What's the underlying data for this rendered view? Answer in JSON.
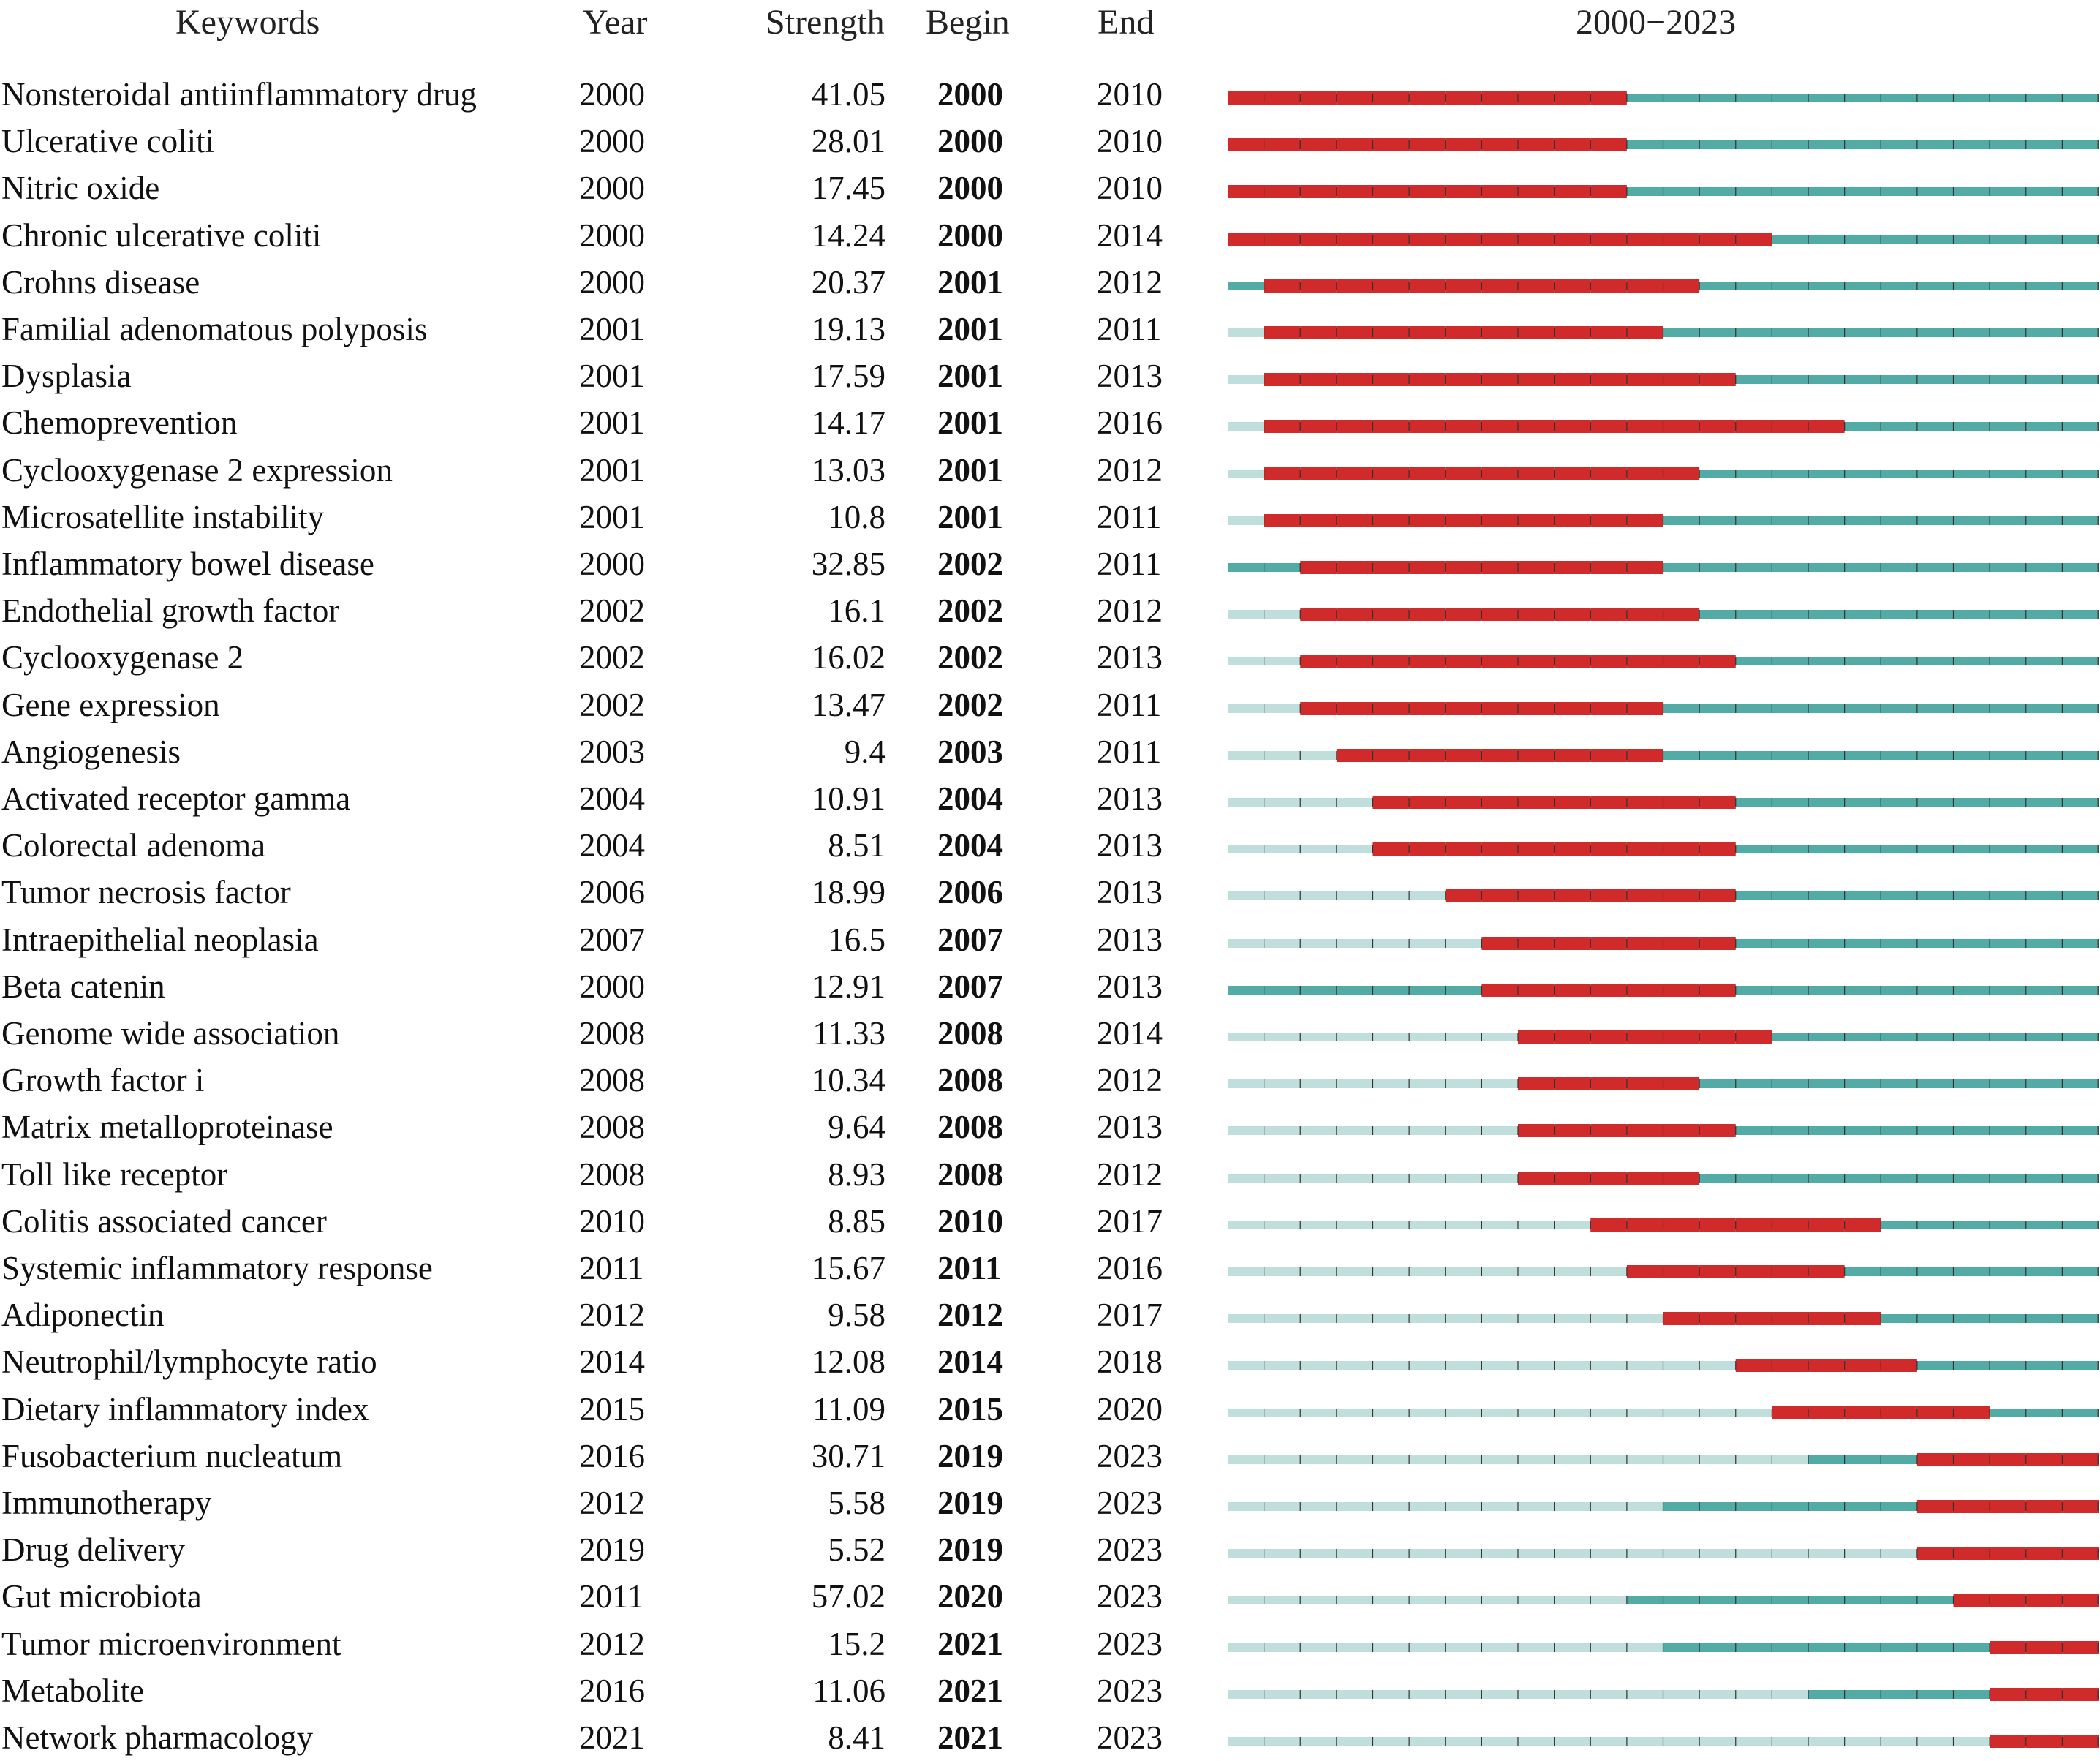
{
  "headers": {
    "keywords": "Keywords",
    "year": "Year",
    "strength": "Strength",
    "begin": "Begin",
    "end": "End",
    "range": "2000−2023"
  },
  "colors": {
    "burst": "#d02a2a",
    "active": "#52aba4",
    "inactive": "#c0dedb",
    "tick": "#333333"
  },
  "chart_data": {
    "type": "table",
    "title": "",
    "timeline_start": 2000,
    "timeline_end": 2023,
    "columns": [
      "Keywords",
      "Year",
      "Strength",
      "Begin",
      "End",
      "2000−2023"
    ],
    "rows": [
      {
        "keyword": "Nonsteroidal antiinflammatory drug",
        "year": "2000",
        "strength": "41.05",
        "begin": "2000",
        "end": "2010"
      },
      {
        "keyword": "Ulcerative coliti",
        "year": "2000",
        "strength": "28.01",
        "begin": "2000",
        "end": "2010"
      },
      {
        "keyword": "Nitric oxide",
        "year": "2000",
        "strength": "17.45",
        "begin": "2000",
        "end": "2010"
      },
      {
        "keyword": "Chronic ulcerative coliti",
        "year": "2000",
        "strength": "14.24",
        "begin": "2000",
        "end": "2014"
      },
      {
        "keyword": "Crohns disease",
        "year": "2000",
        "strength": "20.37",
        "begin": "2001",
        "end": "2012"
      },
      {
        "keyword": "Familial adenomatous polyposis",
        "year": "2001",
        "strength": "19.13",
        "begin": "2001",
        "end": "2011"
      },
      {
        "keyword": "Dysplasia",
        "year": "2001",
        "strength": "17.59",
        "begin": "2001",
        "end": "2013"
      },
      {
        "keyword": "Chemoprevention",
        "year": "2001",
        "strength": "14.17",
        "begin": "2001",
        "end": "2016"
      },
      {
        "keyword": "Cyclooxygenase 2 expression",
        "year": "2001",
        "strength": "13.03",
        "begin": "2001",
        "end": "2012"
      },
      {
        "keyword": "Microsatellite instability",
        "year": "2001",
        "strength": "10.8",
        "begin": "2001",
        "end": "2011"
      },
      {
        "keyword": "Inflammatory bowel disease",
        "year": "2000",
        "strength": "32.85",
        "begin": "2002",
        "end": "2011"
      },
      {
        "keyword": "Endothelial growth factor",
        "year": "2002",
        "strength": "16.1",
        "begin": "2002",
        "end": "2012"
      },
      {
        "keyword": "Cyclooxygenase 2",
        "year": "2002",
        "strength": "16.02",
        "begin": "2002",
        "end": "2013"
      },
      {
        "keyword": "Gene expression",
        "year": "2002",
        "strength": "13.47",
        "begin": "2002",
        "end": "2011"
      },
      {
        "keyword": "Angiogenesis",
        "year": "2003",
        "strength": "9.4",
        "begin": "2003",
        "end": "2011"
      },
      {
        "keyword": "Activated receptor gamma",
        "year": "2004",
        "strength": "10.91",
        "begin": "2004",
        "end": "2013"
      },
      {
        "keyword": "Colorectal adenoma",
        "year": "2004",
        "strength": "8.51",
        "begin": "2004",
        "end": "2013"
      },
      {
        "keyword": "Tumor necrosis factor",
        "year": "2006",
        "strength": "18.99",
        "begin": "2006",
        "end": "2013"
      },
      {
        "keyword": "Intraepithelial neoplasia",
        "year": "2007",
        "strength": "16.5",
        "begin": "2007",
        "end": "2013"
      },
      {
        "keyword": "Beta catenin",
        "year": "2000",
        "strength": "12.91",
        "begin": "2007",
        "end": "2013"
      },
      {
        "keyword": "Genome wide association",
        "year": "2008",
        "strength": "11.33",
        "begin": "2008",
        "end": "2014"
      },
      {
        "keyword": "Growth factor i",
        "year": "2008",
        "strength": "10.34",
        "begin": "2008",
        "end": "2012"
      },
      {
        "keyword": "Matrix metalloproteinase",
        "year": "2008",
        "strength": "9.64",
        "begin": "2008",
        "end": "2013"
      },
      {
        "keyword": "Toll like receptor",
        "year": "2008",
        "strength": "8.93",
        "begin": "2008",
        "end": "2012"
      },
      {
        "keyword": "Colitis associated cancer",
        "year": "2010",
        "strength": "8.85",
        "begin": "2010",
        "end": "2017"
      },
      {
        "keyword": "Systemic inflammatory response",
        "year": "2011",
        "strength": "15.67",
        "begin": "2011",
        "end": "2016"
      },
      {
        "keyword": "Adiponectin",
        "year": "2012",
        "strength": "9.58",
        "begin": "2012",
        "end": "2017"
      },
      {
        "keyword": "Neutrophil/lymphocyte ratio",
        "year": "2014",
        "strength": "12.08",
        "begin": "2014",
        "end": "2018"
      },
      {
        "keyword": "Dietary inflammatory index",
        "year": "2015",
        "strength": "11.09",
        "begin": "2015",
        "end": "2020"
      },
      {
        "keyword": "Fusobacterium nucleatum",
        "year": "2016",
        "strength": "30.71",
        "begin": "2019",
        "end": "2023"
      },
      {
        "keyword": "Immunotherapy",
        "year": "2012",
        "strength": "5.58",
        "begin": "2019",
        "end": "2023"
      },
      {
        "keyword": "Drug delivery",
        "year": "2019",
        "strength": "5.52",
        "begin": "2019",
        "end": "2023"
      },
      {
        "keyword": "Gut microbiota",
        "year": "2011",
        "strength": "57.02",
        "begin": "2020",
        "end": "2023"
      },
      {
        "keyword": "Tumor microenvironment",
        "year": "2012",
        "strength": "15.2",
        "begin": "2021",
        "end": "2023"
      },
      {
        "keyword": "Metabolite",
        "year": "2016",
        "strength": "11.06",
        "begin": "2021",
        "end": "2023"
      },
      {
        "keyword": "Network pharmacology",
        "year": "2021",
        "strength": "8.41",
        "begin": "2021",
        "end": "2023"
      }
    ]
  }
}
